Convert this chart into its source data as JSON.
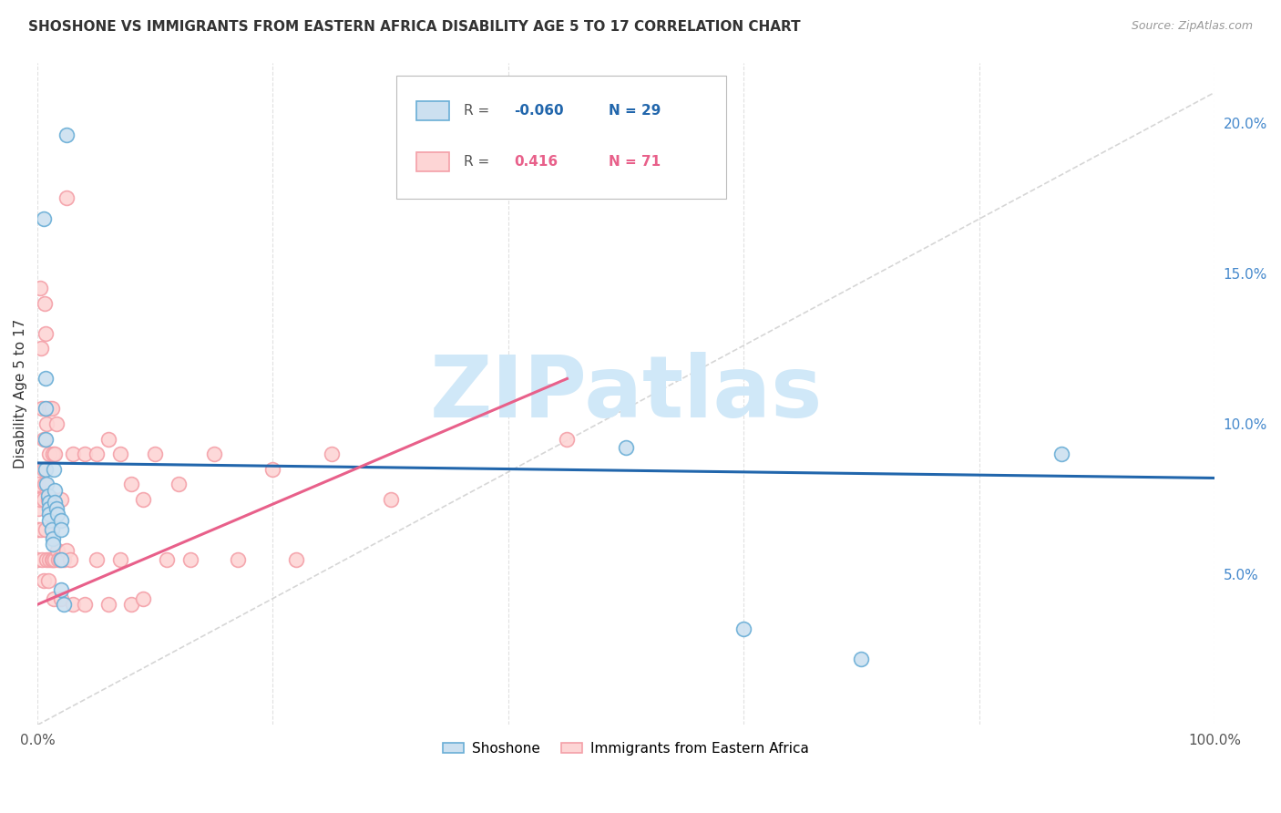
{
  "title": "SHOSHONE VS IMMIGRANTS FROM EASTERN AFRICA DISABILITY AGE 5 TO 17 CORRELATION CHART",
  "source": "Source: ZipAtlas.com",
  "ylabel": "Disability Age 5 to 17",
  "xlim": [
    0,
    1.0
  ],
  "ylim": [
    0,
    0.22
  ],
  "xtick_positions": [
    0.0,
    0.2,
    0.4,
    0.6,
    0.8,
    1.0
  ],
  "xticklabels": [
    "0.0%",
    "",
    "",
    "",
    "",
    "100.0%"
  ],
  "yticks_right": [
    0.05,
    0.1,
    0.15,
    0.2
  ],
  "yticklabels_right": [
    "5.0%",
    "10.0%",
    "15.0%",
    "20.0%"
  ],
  "legend_labels": [
    "Shoshone",
    "Immigrants from Eastern Africa"
  ],
  "r_shoshone": "-0.060",
  "n_shoshone": "29",
  "r_immigrants": "0.416",
  "n_immigrants": "71",
  "shoshone_face_color": "#cce0f0",
  "shoshone_edge_color": "#6aaed6",
  "immigrants_face_color": "#fdd5d5",
  "immigrants_edge_color": "#f4a0a8",
  "shoshone_line_color": "#2166ac",
  "immigrants_line_color": "#e8608a",
  "diagonal_line_color": "#cccccc",
  "background_color": "#ffffff",
  "watermark_text": "ZIPatlas",
  "watermark_color": "#d0e8f8",
  "grid_color": "#e0e0e0",
  "title_color": "#333333",
  "source_color": "#999999",
  "ylabel_color": "#333333",
  "right_tick_color": "#4488cc",
  "shoshone_x": [
    0.025,
    0.005,
    0.007,
    0.007,
    0.007,
    0.007,
    0.008,
    0.009,
    0.01,
    0.01,
    0.01,
    0.01,
    0.012,
    0.013,
    0.013,
    0.014,
    0.015,
    0.015,
    0.016,
    0.017,
    0.02,
    0.02,
    0.02,
    0.02,
    0.022,
    0.5,
    0.87,
    0.6,
    0.7
  ],
  "shoshone_y": [
    0.196,
    0.168,
    0.115,
    0.105,
    0.095,
    0.085,
    0.08,
    0.076,
    0.074,
    0.072,
    0.07,
    0.068,
    0.065,
    0.062,
    0.06,
    0.085,
    0.078,
    0.074,
    0.072,
    0.07,
    0.068,
    0.065,
    0.055,
    0.045,
    0.04,
    0.092,
    0.09,
    0.032,
    0.022
  ],
  "immigrants_x": [
    0.0,
    0.0,
    0.0,
    0.001,
    0.001,
    0.001,
    0.002,
    0.002,
    0.003,
    0.003,
    0.004,
    0.004,
    0.005,
    0.005,
    0.005,
    0.005,
    0.006,
    0.006,
    0.007,
    0.007,
    0.008,
    0.008,
    0.009,
    0.009,
    0.01,
    0.01,
    0.01,
    0.01,
    0.012,
    0.012,
    0.013,
    0.013,
    0.014,
    0.014,
    0.015,
    0.015,
    0.016,
    0.017,
    0.018,
    0.019,
    0.02,
    0.02,
    0.022,
    0.025,
    0.025,
    0.028,
    0.03,
    0.03,
    0.04,
    0.04,
    0.05,
    0.05,
    0.06,
    0.06,
    0.07,
    0.07,
    0.08,
    0.08,
    0.09,
    0.09,
    0.1,
    0.11,
    0.12,
    0.13,
    0.15,
    0.17,
    0.2,
    0.22,
    0.25,
    0.3,
    0.45
  ],
  "immigrants_y": [
    0.075,
    0.065,
    0.055,
    0.08,
    0.072,
    0.065,
    0.145,
    0.075,
    0.125,
    0.065,
    0.105,
    0.055,
    0.095,
    0.085,
    0.075,
    0.048,
    0.14,
    0.08,
    0.13,
    0.065,
    0.1,
    0.055,
    0.075,
    0.048,
    0.105,
    0.09,
    0.075,
    0.055,
    0.105,
    0.055,
    0.09,
    0.055,
    0.075,
    0.042,
    0.09,
    0.055,
    0.1,
    0.058,
    0.055,
    0.055,
    0.075,
    0.042,
    0.055,
    0.175,
    0.058,
    0.055,
    0.09,
    0.04,
    0.09,
    0.04,
    0.09,
    0.055,
    0.095,
    0.04,
    0.09,
    0.055,
    0.08,
    0.04,
    0.075,
    0.042,
    0.09,
    0.055,
    0.08,
    0.055,
    0.09,
    0.055,
    0.085,
    0.055,
    0.09,
    0.075,
    0.095
  ]
}
